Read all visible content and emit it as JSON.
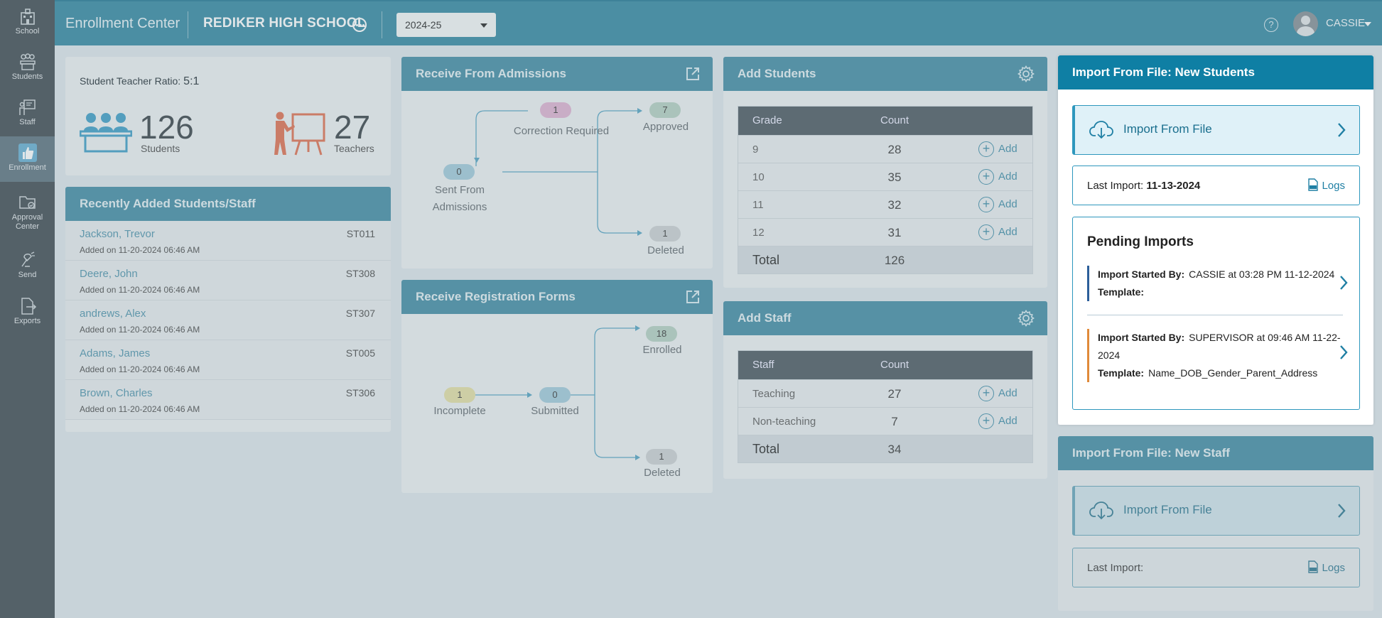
{
  "rail": {
    "items": [
      {
        "label": "School",
        "icon": "school-icon"
      },
      {
        "label": "Students",
        "icon": "students-icon"
      },
      {
        "label": "Staff",
        "icon": "staff-icon"
      },
      {
        "label": "Enrollment",
        "icon": "thumbs-up-icon",
        "active": true
      },
      {
        "label": "Approval Center",
        "icon": "approval-icon"
      },
      {
        "label": "Send",
        "icon": "send-icon"
      },
      {
        "label": "Exports",
        "icon": "exports-icon"
      }
    ]
  },
  "header": {
    "title": "Enrollment Center",
    "school": "REDIKER HIGH SCHOOL",
    "year": "2024-25",
    "help": "?",
    "user": "CASSIE"
  },
  "ratio": {
    "label": "Student Teacher Ratio:",
    "value": "5:1",
    "students_count": "126",
    "students_label": "Students",
    "teachers_count": "27",
    "teachers_label": "Teachers"
  },
  "recent": {
    "title": "Recently Added Students/Staff",
    "items": [
      {
        "name": "Jackson, Trevor",
        "code": "ST011",
        "date": "Added on 11-20-2024 06:46 AM"
      },
      {
        "name": "Deere, John",
        "code": "ST308",
        "date": "Added on 11-20-2024 06:46 AM"
      },
      {
        "name": "andrews, Alex",
        "code": "ST307",
        "date": "Added on 11-20-2024 06:46 AM"
      },
      {
        "name": "Adams, James",
        "code": "ST005",
        "date": "Added on 11-20-2024 06:46 AM"
      },
      {
        "name": "Brown, Charles",
        "code": "ST306",
        "date": "Added on 11-20-2024 06:46 AM"
      }
    ]
  },
  "admissions": {
    "title": "Receive From Admissions",
    "correction_count": "1",
    "correction_label": "Correction Required",
    "approved_count": "7",
    "approved_label": "Approved",
    "sent_count": "0",
    "sent_label_1": "Sent From",
    "sent_label_2": "Admissions",
    "deleted_count": "1",
    "deleted_label": "Deleted"
  },
  "registration": {
    "title": "Receive Registration Forms",
    "incomplete_count": "1",
    "incomplete_label": "Incomplete",
    "submitted_count": "0",
    "submitted_label": "Submitted",
    "enrolled_count": "18",
    "enrolled_label": "Enrolled",
    "deleted_count": "1",
    "deleted_label": "Deleted"
  },
  "add_students": {
    "title": "Add Students",
    "col_grade": "Grade",
    "col_count": "Count",
    "add_label": "Add",
    "rows": [
      {
        "grade": "9",
        "count": "28"
      },
      {
        "grade": "10",
        "count": "35"
      },
      {
        "grade": "11",
        "count": "32"
      },
      {
        "grade": "12",
        "count": "31"
      }
    ],
    "total_label": "Total",
    "total_count": "126"
  },
  "add_staff": {
    "title": "Add Staff",
    "col_staff": "Staff",
    "col_count": "Count",
    "add_label": "Add",
    "rows": [
      {
        "staff": "Teaching",
        "count": "27"
      },
      {
        "staff": "Non-teaching",
        "count": "7"
      }
    ],
    "total_label": "Total",
    "total_count": "34"
  },
  "import_students": {
    "title": "Import From File: New Students",
    "button": "Import From File",
    "last_import_label": "Last Import:",
    "last_import_date": "11-13-2024",
    "logs": "Logs",
    "pending_title": "Pending Imports",
    "started_by_label": "Import Started By:",
    "template_label": "Template:",
    "pending": [
      {
        "started_by": "CASSIE at 03:28 PM 11-12-2024",
        "template": ""
      },
      {
        "started_by": "SUPERVISOR at 09:46 AM 11-22-2024",
        "template": "Name_DOB_Gender_Parent_Address"
      }
    ]
  },
  "import_staff": {
    "title": "Import From File: New Staff",
    "button": "Import From File",
    "last_import_label": "Last Import:",
    "logs": "Logs"
  }
}
